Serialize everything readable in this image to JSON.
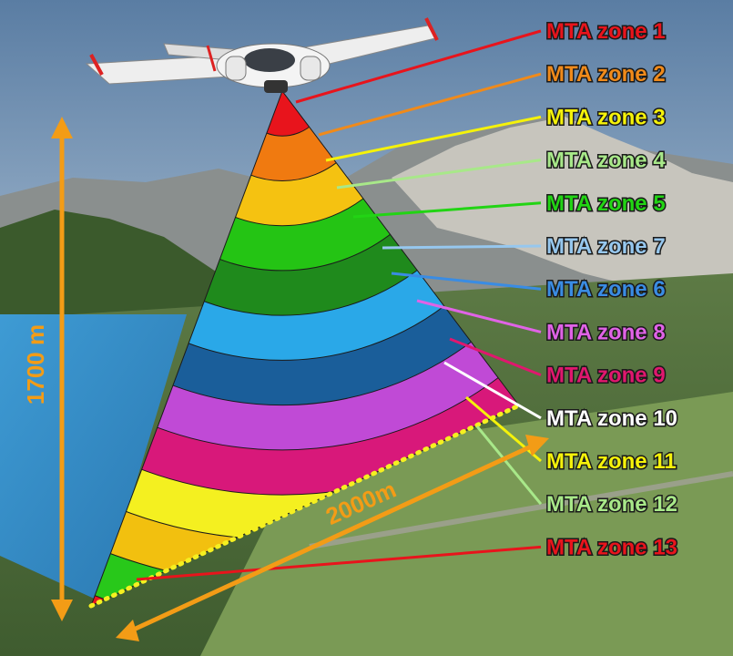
{
  "zones": [
    {
      "label": "MTA zone 1",
      "color": "#e8141c"
    },
    {
      "label": "MTA zone 2",
      "color": "#f08a1a"
    },
    {
      "label": "MTA zone 3",
      "color": "#f5f20a"
    },
    {
      "label": "MTA zone 4",
      "color": "#a8e889"
    },
    {
      "label": "MTA zone 5",
      "color": "#22d414"
    },
    {
      "label": "MTA zone 7",
      "color": "#96c7ee"
    },
    {
      "label": "MTA zone 6",
      "color": "#3a8ce3"
    },
    {
      "label": "MTA zone 8",
      "color": "#e063e6"
    },
    {
      "label": "MTA zone 9",
      "color": "#e0176e"
    },
    {
      "label": "MTA zone 10",
      "color": "#ffffff"
    },
    {
      "label": "MTA zone 11",
      "color": "#f5f20a"
    },
    {
      "label": "MTA zone 12",
      "color": "#a8e889"
    },
    {
      "label": "MTA zone 13",
      "color": "#e8141c"
    }
  ],
  "bands": [
    {
      "color": "#e8141c"
    },
    {
      "color": "#f07a10"
    },
    {
      "color": "#f5c211"
    },
    {
      "color": "#24c414"
    },
    {
      "color": "#1f8a1c"
    },
    {
      "color": "#2aa8e8"
    },
    {
      "color": "#1a5e9a"
    },
    {
      "color": "#c04ad6"
    },
    {
      "color": "#d8187a"
    },
    {
      "color": "#f4f020"
    },
    {
      "color": "#f2c00f"
    },
    {
      "color": "#28c81a"
    },
    {
      "color": "#e8141c"
    }
  ],
  "dimensions": {
    "height_label": "1700 m",
    "width_label": "2000m",
    "color": "#f39c16"
  }
}
